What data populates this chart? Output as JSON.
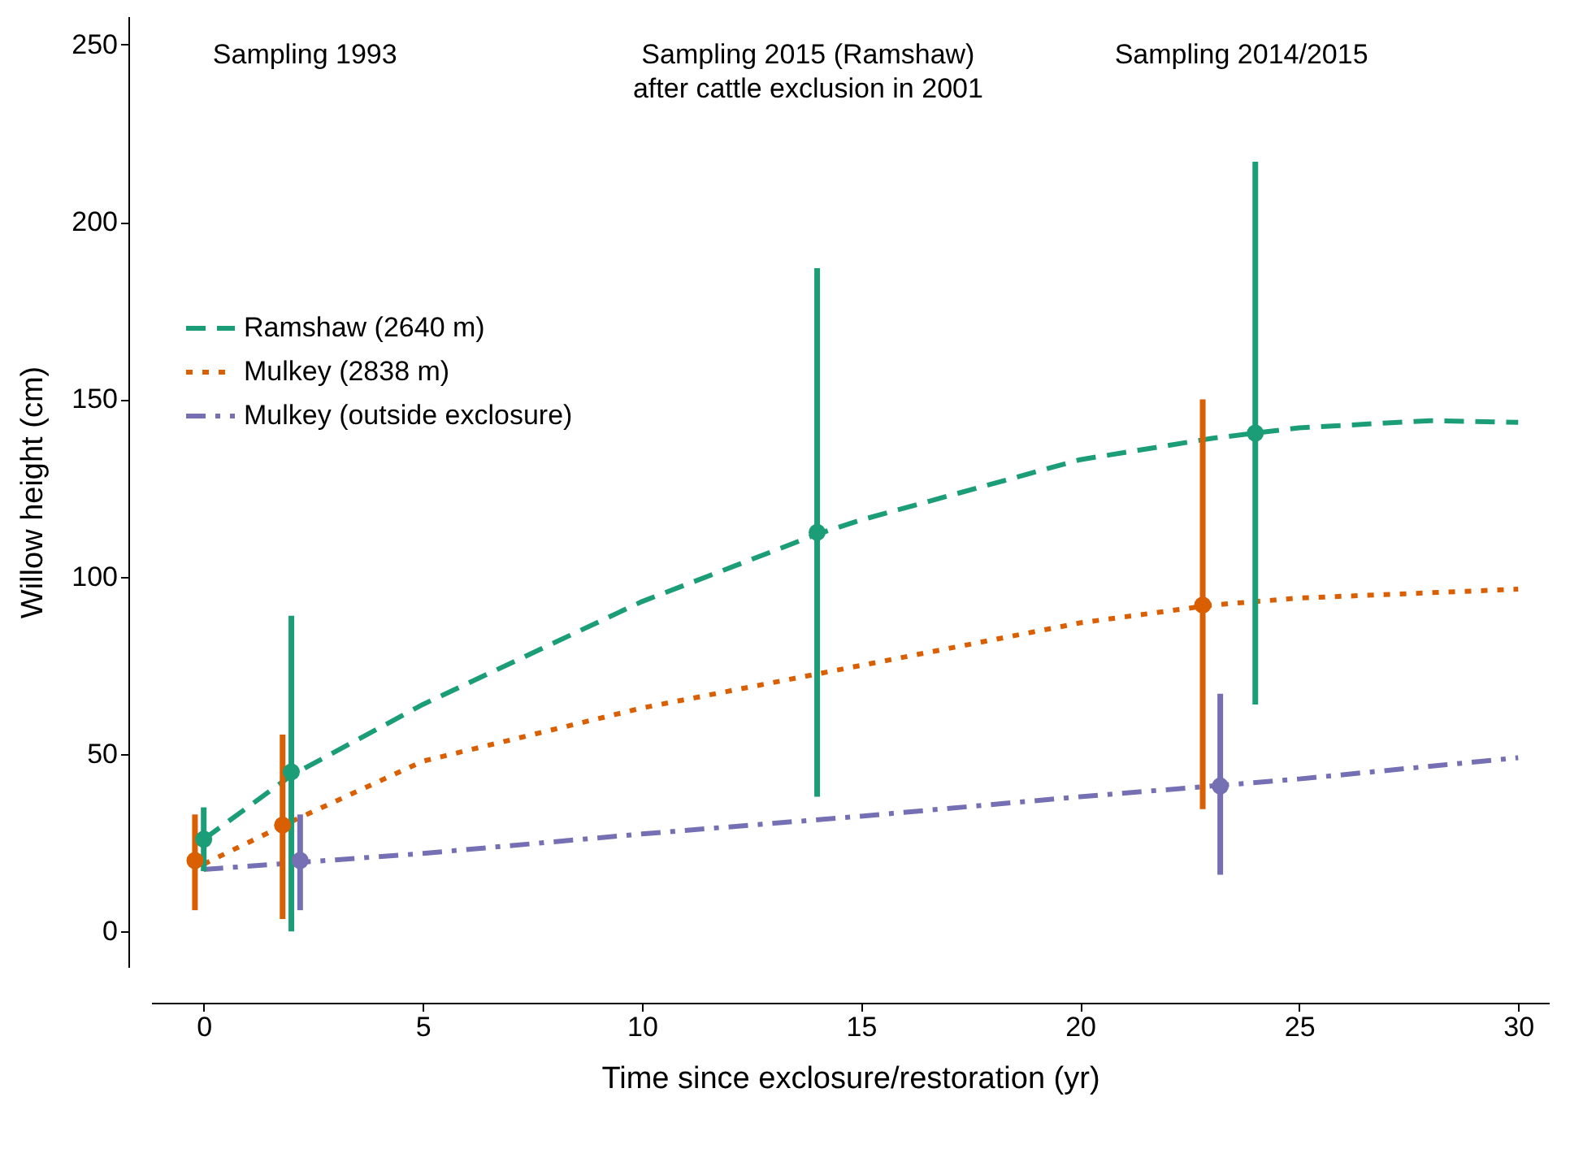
{
  "chart_data": {
    "type": "line",
    "xlabel": "Time since exclosure/restoration (yr)",
    "ylabel": "Willow height (cm)",
    "xlim": [
      -1.2,
      30.7
    ],
    "xticks": [
      0,
      5,
      10,
      15,
      20,
      25,
      30
    ],
    "ylim": [
      -10,
      258
    ],
    "yticks": [
      0,
      50,
      100,
      150,
      200,
      250
    ],
    "grid": false,
    "legend": "top left",
    "annotations": [
      "Sampling 1993",
      "Sampling 2015 (Ramshaw)\nafter cattle exclusion in 2001",
      "Sampling 2014/2015"
    ],
    "series": [
      {
        "type": "line",
        "name": "Ramshaw (2640 m)",
        "color": "#1b9e77",
        "line_style": "dashed",
        "x": [
          0,
          2,
          5,
          10,
          14,
          15,
          20,
          23,
          25,
          28,
          30
        ],
        "values": [
          26,
          44,
          64,
          93,
          112,
          116,
          133,
          139,
          142,
          144,
          143.5
        ]
      },
      {
        "type": "line",
        "name": "Mulkey (2838 m)",
        "color": "#d95f02",
        "line_style": "dotted",
        "x": [
          0,
          2,
          5,
          10,
          15,
          20,
          23,
          25,
          30
        ],
        "values": [
          19,
          31,
          48,
          63,
          75,
          87,
          92,
          94,
          96.5
        ]
      },
      {
        "type": "line",
        "name": "Mulkey (outside exclosure)",
        "color": "#7570b3",
        "line_style": "dashdot",
        "x": [
          0,
          5,
          10,
          15,
          20,
          23,
          25,
          30
        ],
        "values": [
          17.5,
          22,
          27.5,
          32.5,
          38,
          41,
          43,
          49
        ]
      },
      {
        "type": "scatter",
        "color": "#1b9e77",
        "marker": "circle",
        "x": [
          0,
          2,
          14,
          24
        ],
        "values": [
          26,
          45,
          112.5,
          140.5
        ],
        "errors": [
          [
            17,
            35
          ],
          [
            0,
            89
          ],
          [
            38,
            187
          ],
          [
            64,
            217
          ]
        ]
      },
      {
        "type": "scatter",
        "color": "#d95f02",
        "marker": "circle",
        "x": [
          -0.2,
          1.8,
          22.8
        ],
        "values": [
          20,
          30,
          92
        ],
        "errors": [
          [
            6,
            33
          ],
          [
            3.5,
            55.5
          ],
          [
            34.5,
            150
          ]
        ]
      },
      {
        "type": "scatter",
        "color": "#7570b3",
        "marker": "circle",
        "x": [
          2.2,
          23.2
        ],
        "values": [
          20,
          41
        ],
        "errors": [
          [
            6,
            33
          ],
          [
            16,
            67
          ]
        ]
      }
    ]
  }
}
